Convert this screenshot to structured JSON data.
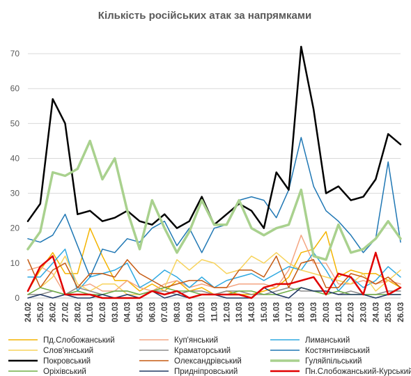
{
  "chart_data": {
    "type": "line",
    "title": "Кількість російських атак за напрямками",
    "xlabel": "",
    "ylabel": "",
    "ylim": [
      0,
      75
    ],
    "yticks": [
      0,
      10,
      20,
      30,
      40,
      50,
      60,
      70
    ],
    "grid": true,
    "legend_position": "bottom",
    "x": [
      "24.02",
      "25.02",
      "26.02",
      "27.02",
      "28.02",
      "01.03",
      "02.03",
      "03.03",
      "04.03",
      "05.03",
      "06.03",
      "07.03",
      "08.03",
      "09.03",
      "10.03",
      "11.03",
      "12.03",
      "13.03",
      "14.03",
      "15.03",
      "16.03",
      "17.03",
      "18.03",
      "19.03",
      "20.03",
      "21.03",
      "22.03",
      "23.03",
      "24.03",
      "25.03",
      "26.03"
    ],
    "series": [
      {
        "name": "Пд.Слобожанський",
        "color": "#f4b400",
        "width": 1.5,
        "values": [
          2,
          8,
          13,
          7,
          7,
          20,
          12,
          5,
          5,
          2,
          4,
          2,
          5,
          2,
          3,
          1,
          2,
          1,
          1,
          2,
          3,
          6,
          13,
          14,
          19,
          6,
          8,
          7,
          7,
          5,
          3
        ]
      },
      {
        "name": "Куп'янський",
        "color": "#f4a582",
        "width": 1.5,
        "values": [
          8,
          9,
          7,
          1,
          3,
          4,
          2,
          2,
          5,
          3,
          2,
          4,
          5,
          3,
          4,
          3,
          3,
          4,
          4,
          4,
          3,
          8,
          18,
          10,
          10,
          4,
          4,
          5,
          4,
          5,
          4
        ]
      },
      {
        "name": "Лиманський",
        "color": "#2ea8e0",
        "width": 1.5,
        "values": [
          6,
          6,
          10,
          14,
          2,
          6,
          7,
          8,
          10,
          3,
          5,
          8,
          6,
          3,
          6,
          3,
          5,
          6,
          7,
          5,
          7,
          9,
          8,
          13,
          8,
          2,
          6,
          3,
          5,
          9,
          6
        ]
      },
      {
        "name": "Слов'янський",
        "color": "#f7d35c",
        "width": 1.5,
        "values": [
          1,
          3,
          6,
          12,
          4,
          2,
          4,
          4,
          1,
          1,
          2,
          3,
          11,
          8,
          11,
          10,
          7,
          8,
          12,
          10,
          13,
          10,
          8,
          7,
          6,
          5,
          4,
          7,
          2,
          5,
          8
        ]
      },
      {
        "name": "Краматорський",
        "color": "#8c8c8c",
        "width": 1.5,
        "values": [
          1,
          1,
          2,
          1,
          3,
          2,
          1,
          2,
          2,
          1,
          2,
          2,
          1,
          2,
          2,
          1,
          2,
          2,
          1,
          1,
          2,
          3,
          2,
          2,
          2,
          1,
          2,
          1,
          1,
          2,
          2
        ]
      },
      {
        "name": "Костянтинівський",
        "color": "#1f77b4",
        "width": 1.5,
        "values": [
          17,
          16,
          18,
          24,
          15,
          6,
          14,
          13,
          17,
          16,
          20,
          22,
          15,
          20,
          13,
          20,
          21,
          28,
          29,
          28,
          23,
          31,
          46,
          32,
          25,
          22,
          18,
          13,
          17,
          39,
          16
        ]
      },
      {
        "name": "Покровський",
        "color": "#000000",
        "width": 2.5,
        "values": [
          22,
          27,
          57,
          50,
          24,
          25,
          22,
          23,
          25,
          22,
          21,
          24,
          20,
          22,
          29,
          21,
          24,
          27,
          25,
          20,
          36,
          31,
          72,
          54,
          30,
          32,
          28,
          29,
          34,
          47,
          44
        ]
      },
      {
        "name": "Олександрівський",
        "color": "#c55a11",
        "width": 1.5,
        "values": [
          11,
          3,
          8,
          10,
          3,
          7,
          7,
          6,
          11,
          7,
          5,
          3,
          4,
          5,
          5,
          3,
          3,
          8,
          8,
          6,
          12,
          3,
          10,
          11,
          3,
          3,
          7,
          6,
          4,
          6,
          3
        ]
      },
      {
        "name": "Гуляйпільський",
        "color": "#a9d18e",
        "width": 3.5,
        "values": [
          14,
          19,
          36,
          35,
          37,
          45,
          34,
          40,
          25,
          14,
          28,
          20,
          13,
          19,
          28,
          21,
          21,
          28,
          20,
          18,
          20,
          21,
          31,
          12,
          11,
          21,
          13,
          14,
          17,
          22,
          17
        ]
      },
      {
        "name": "Оріхівський",
        "color": "#70ad47",
        "width": 1.5,
        "values": [
          1,
          3,
          2,
          1,
          2,
          1,
          1,
          2,
          2,
          1,
          2,
          3,
          2,
          2,
          1,
          1,
          1,
          2,
          2,
          1,
          1,
          2,
          3,
          2,
          1,
          2,
          1,
          1,
          1,
          1,
          1
        ]
      },
      {
        "name": "Придніпровський",
        "color": "#203864",
        "width": 1.5,
        "values": [
          0,
          1,
          0,
          1,
          0,
          0,
          1,
          0,
          1,
          0,
          2,
          0,
          1,
          0,
          1,
          1,
          0,
          0,
          0,
          3,
          1,
          0,
          3,
          2,
          2,
          1,
          1,
          1,
          0,
          1,
          1
        ]
      },
      {
        "name": "Пн.Слобожанський-Курський",
        "color": "#e00000",
        "width": 2.5,
        "values": [
          2,
          9,
          12,
          1,
          1,
          1,
          0,
          0,
          0,
          0,
          2,
          1,
          2,
          0,
          1,
          1,
          1,
          1,
          0,
          3,
          4,
          4,
          5,
          6,
          1,
          7,
          6,
          1,
          13,
          1,
          3
        ]
      }
    ]
  }
}
